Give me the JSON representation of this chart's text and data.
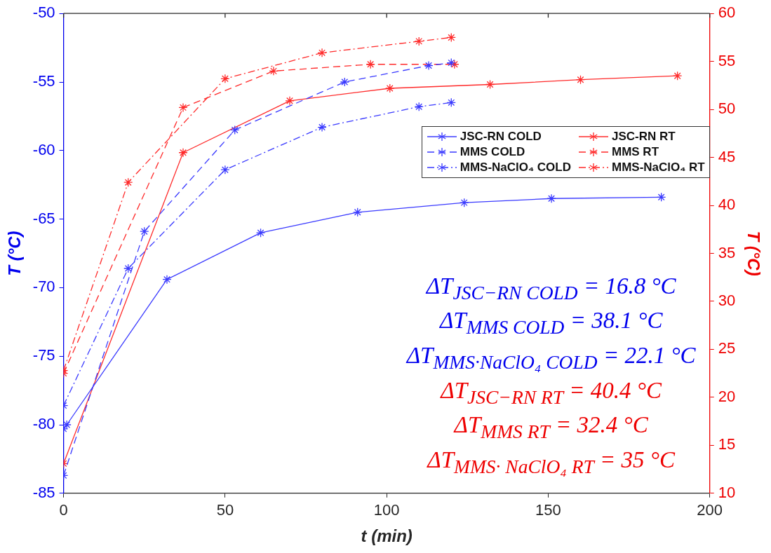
{
  "chart_data": {
    "type": "line",
    "xlabel": "t (min)",
    "ylabel": "T (°C)",
    "y2label": "T (°C)",
    "xlim": [
      0,
      200
    ],
    "xticks": [
      0,
      50,
      100,
      150,
      200
    ],
    "ylim": [
      -85,
      -50
    ],
    "yticks": [
      -85,
      -80,
      -75,
      -70,
      -65,
      -60,
      -55,
      -50
    ],
    "y2lim": [
      10,
      60
    ],
    "y2ticks": [
      10,
      15,
      20,
      25,
      30,
      35,
      40,
      45,
      50,
      55,
      60
    ],
    "marker": "cross",
    "legend": "right",
    "series": [
      {
        "name": "JSC-RN COLD",
        "color": "#3a3aff",
        "line_style": "solid",
        "axis": "y",
        "x": [
          0,
          1,
          32,
          61,
          91,
          124,
          151,
          185
        ],
        "values": [
          -80.3,
          -80.0,
          -69.4,
          -66.0,
          -64.5,
          -63.8,
          -63.5,
          -63.4
        ]
      },
      {
        "name": "MMS COLD",
        "color": "#3a3aff",
        "line_style": "dashed",
        "axis": "y",
        "x": [
          0,
          25,
          53,
          87,
          113,
          120
        ],
        "values": [
          -83.7,
          -65.9,
          -58.5,
          -55.0,
          -53.8,
          -53.6
        ]
      },
      {
        "name": "MMS-NaClO₄ COLD",
        "color": "#3a3aff",
        "line_style": "dashdot",
        "axis": "y",
        "x": [
          0,
          20,
          50,
          80,
          110,
          120
        ],
        "values": [
          -78.6,
          -68.6,
          -61.4,
          -58.3,
          -56.8,
          -56.5
        ]
      },
      {
        "name": "JSC-RN RT",
        "color": "#ff2a2a",
        "line_style": "solid",
        "axis": "y2",
        "x": [
          0,
          37,
          70,
          101,
          132,
          160,
          190
        ],
        "values": [
          13.1,
          45.5,
          50.9,
          52.2,
          52.6,
          53.1,
          53.5
        ]
      },
      {
        "name": "MMS RT",
        "color": "#ff2a2a",
        "line_style": "dashed",
        "axis": "y2",
        "x": [
          0,
          37,
          65,
          95,
          121
        ],
        "values": [
          22.5,
          50.2,
          54.0,
          54.7,
          54.7
        ]
      },
      {
        "name": "MMS-NaClO₄ RT",
        "color": "#ff2a2a",
        "line_style": "dashdot",
        "axis": "y2",
        "x": [
          0,
          20,
          50,
          80,
          110,
          120
        ],
        "values": [
          22.8,
          42.4,
          53.2,
          55.9,
          57.1,
          57.5
        ]
      }
    ],
    "annotations": [
      "ΔT$_{JSC−RN COLD}$ = 16.8 °C",
      "ΔT$_{MMS COLD}$ = 38.1 °C",
      "ΔT$_{MMS·NaClO₄ COLD}$ = 22.1 °C",
      "ΔT$_{JSC−RN RT}$ = 40.4 °C",
      "ΔT$_{MMS RT}$ = 32.4 °C",
      "ΔT$_{MMS· NaClO₄ RT}$ = 35 °C"
    ]
  }
}
